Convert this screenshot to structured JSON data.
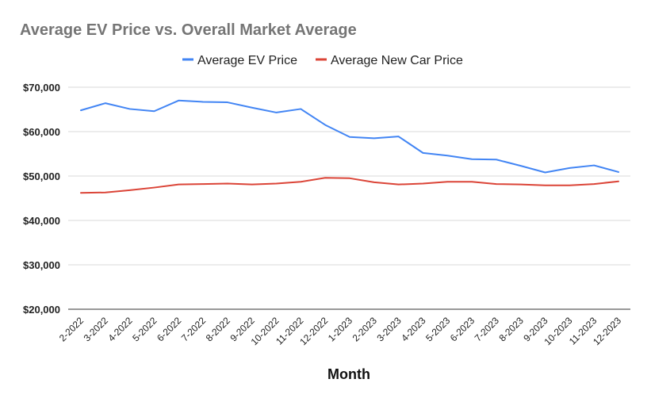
{
  "chart_data": {
    "type": "line",
    "title": "Average EV Price vs. Overall Market Average",
    "xlabel": "Month",
    "ylabel": "",
    "ylim": [
      20000,
      70000
    ],
    "yticks": [
      20000,
      30000,
      40000,
      50000,
      60000,
      70000
    ],
    "ytick_labels": [
      "$20,000",
      "$30,000",
      "$40,000",
      "$50,000",
      "$60,000",
      "$70,000"
    ],
    "grid": true,
    "legend_position": "top-center",
    "categories": [
      "2-2022",
      "3-2022",
      "4-2022",
      "5-2022",
      "6-2022",
      "7-2022",
      "8-2022",
      "9-2022",
      "10-2022",
      "11-2022",
      "12-2022",
      "1-2023",
      "2-2023",
      "3-2023",
      "4-2023",
      "5-2023",
      "6-2023",
      "7-2023",
      "8-2023",
      "9-2023",
      "10-2023",
      "11-2023",
      "12-2023"
    ],
    "series": [
      {
        "name": "Average EV Price",
        "color": "#4285f4",
        "values": [
          64800,
          66400,
          65100,
          64600,
          67000,
          66700,
          66600,
          65400,
          64300,
          65100,
          61500,
          58800,
          58500,
          58900,
          55200,
          54600,
          53800,
          53700,
          52300,
          50800,
          51800,
          52400,
          50900
        ]
      },
      {
        "name": "Average New Car Price",
        "color": "#db4437",
        "values": [
          46200,
          46300,
          46800,
          47400,
          48100,
          48200,
          48300,
          48100,
          48300,
          48700,
          49600,
          49500,
          48600,
          48100,
          48300,
          48700,
          48700,
          48200,
          48100,
          47900,
          47900,
          48200,
          48800
        ]
      }
    ]
  }
}
